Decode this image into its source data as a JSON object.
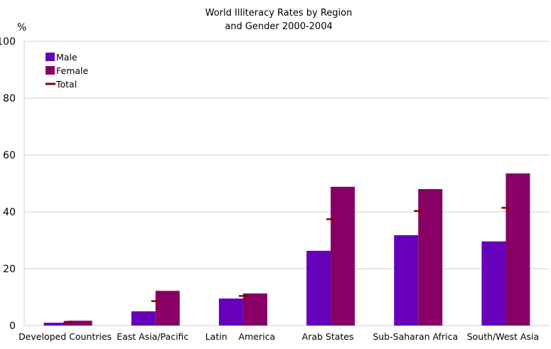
{
  "chart_data": {
    "type": "bar",
    "title_lines": [
      "World Illiteracy Rates by Region",
      "and Gender 2000-2004"
    ],
    "ylabel": "%",
    "ylim": [
      0,
      100
    ],
    "yticks": [
      0,
      20,
      40,
      60,
      80,
      100
    ],
    "grid": true,
    "legend_position": "top-left",
    "categories": [
      "Developed Countries",
      "East Asia/Pacific",
      "Latin    America",
      "Arab States",
      "Sub-Saharan Africa",
      "South/West Asia"
    ],
    "series": [
      {
        "name": "Male",
        "type": "bar",
        "color": "#6600bb",
        "values": [
          1.0,
          5.0,
          9.5,
          26.3,
          31.8,
          29.6
        ]
      },
      {
        "name": "Female",
        "type": "bar",
        "color": "#880066",
        "values": [
          1.7,
          12.2,
          11.3,
          48.8,
          48.0,
          53.5
        ]
      },
      {
        "name": "Total",
        "type": "marker",
        "color": "#880000",
        "values": [
          1.3,
          8.6,
          10.4,
          37.4,
          40.3,
          41.4
        ]
      }
    ]
  }
}
